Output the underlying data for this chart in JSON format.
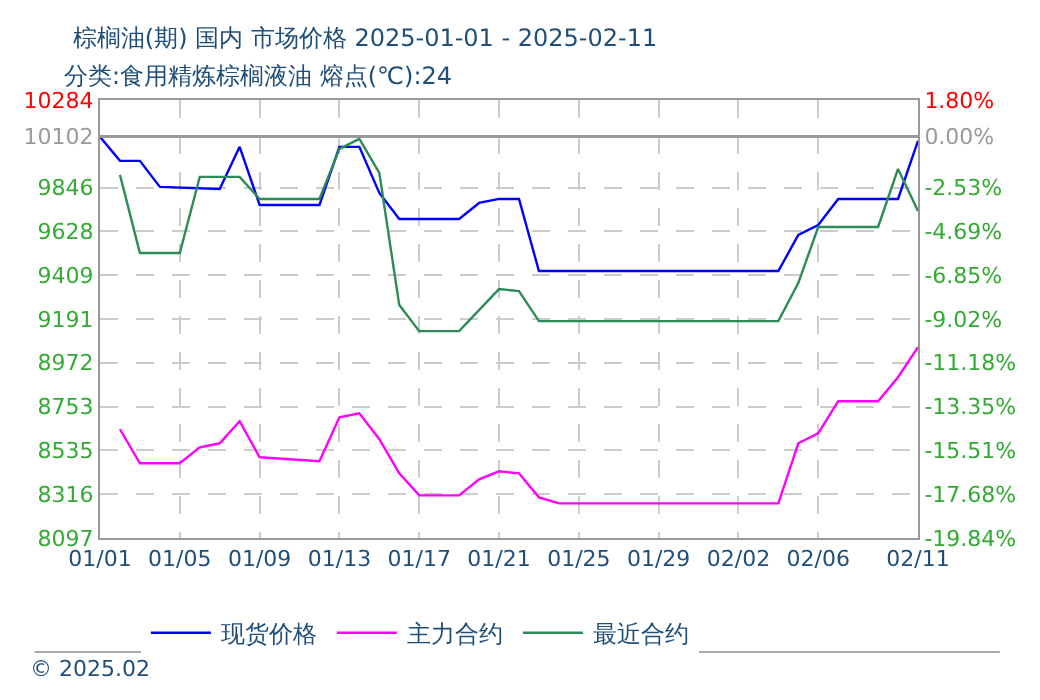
{
  "chart_data": {
    "type": "line",
    "title": "棕榈油(期) 国内 市场价格 2025-01-01 - 2025-02-11",
    "subtitle": "分类:食用精炼棕榈液油 熔点(℃):24",
    "xlim": [
      "2025-01-01",
      "2025-02-11"
    ],
    "xticks": [
      {
        "value": "2025-01-01",
        "label": "01/01"
      },
      {
        "value": "2025-01-05",
        "label": "01/05"
      },
      {
        "value": "2025-01-09",
        "label": "01/09"
      },
      {
        "value": "2025-01-13",
        "label": "01/13"
      },
      {
        "value": "2025-01-17",
        "label": "01/17"
      },
      {
        "value": "2025-01-21",
        "label": "01/21"
      },
      {
        "value": "2025-01-25",
        "label": "01/25"
      },
      {
        "value": "2025-01-29",
        "label": "01/29"
      },
      {
        "value": "2025-02-02",
        "label": "02/02"
      },
      {
        "value": "2025-02-06",
        "label": "02/06"
      },
      {
        "value": "2025-02-11",
        "label": "02/11"
      }
    ],
    "ylim": [
      8097,
      10284
    ],
    "yticks": [
      8097,
      8316,
      8535,
      8753,
      8972,
      9191,
      9409,
      9628,
      9846,
      10102,
      10284
    ],
    "y2lim": [
      -19.84,
      1.8
    ],
    "y2ticks": [
      {
        "value": -19.84,
        "label": "-19.84%"
      },
      {
        "value": -17.68,
        "label": "-17.68%"
      },
      {
        "value": -15.51,
        "label": "-15.51%"
      },
      {
        "value": -13.35,
        "label": "-13.35%"
      },
      {
        "value": -11.18,
        "label": "-11.18%"
      },
      {
        "value": -9.02,
        "label": "-9.02%"
      },
      {
        "value": -6.85,
        "label": "-6.85%"
      },
      {
        "value": -4.69,
        "label": "-4.69%"
      },
      {
        "value": -2.53,
        "label": "-2.53%"
      },
      {
        "value": 0.0,
        "label": "0.00%"
      },
      {
        "value": 1.8,
        "label": "1.80%"
      }
    ],
    "grid": true,
    "legend": "bottom",
    "ref_lines": [
      {
        "axis": "y",
        "value": 10102,
        "color": "#999999"
      }
    ],
    "annotations": [
      "© 2025.02"
    ],
    "series": [
      {
        "name": "现货价格",
        "color": "#0000ff",
        "x": [
          "2025-01-01",
          "2025-01-02",
          "2025-01-03",
          "2025-01-04",
          "2025-01-07",
          "2025-01-08",
          "2025-01-09",
          "2025-01-12",
          "2025-01-13",
          "2025-01-14",
          "2025-01-15",
          "2025-01-16",
          "2025-01-19",
          "2025-01-20",
          "2025-01-21",
          "2025-01-22",
          "2025-01-23",
          "2025-02-04",
          "2025-02-05",
          "2025-02-06",
          "2025-02-07",
          "2025-02-10",
          "2025-02-11"
        ],
        "values": [
          10100,
          9980,
          9980,
          9850,
          9840,
          10050,
          9760,
          9760,
          10050,
          10050,
          9820,
          9690,
          9690,
          9770,
          9790,
          9790,
          9430,
          9430,
          9610,
          9660,
          9790,
          9790,
          10080
        ]
      },
      {
        "name": "主力合约",
        "color": "#ff00ff",
        "x": [
          "2025-01-02",
          "2025-01-03",
          "2025-01-05",
          "2025-01-06",
          "2025-01-07",
          "2025-01-08",
          "2025-01-09",
          "2025-01-12",
          "2025-01-13",
          "2025-01-14",
          "2025-01-15",
          "2025-01-16",
          "2025-01-17",
          "2025-01-19",
          "2025-01-20",
          "2025-01-21",
          "2025-01-22",
          "2025-01-23",
          "2025-01-24",
          "2025-02-04",
          "2025-02-05",
          "2025-02-06",
          "2025-02-07",
          "2025-02-09",
          "2025-02-10",
          "2025-02-11"
        ],
        "values": [
          8640,
          8470,
          8470,
          8550,
          8570,
          8680,
          8500,
          8480,
          8700,
          8720,
          8590,
          8420,
          8310,
          8310,
          8390,
          8430,
          8420,
          8300,
          8270,
          8270,
          8570,
          8620,
          8780,
          8780,
          8900,
          9050
        ]
      },
      {
        "name": "最近合约",
        "color": "#2e8b57",
        "x": [
          "2025-01-02",
          "2025-01-03",
          "2025-01-05",
          "2025-01-06",
          "2025-01-08",
          "2025-01-09",
          "2025-01-12",
          "2025-01-13",
          "2025-01-14",
          "2025-01-15",
          "2025-01-16",
          "2025-01-17",
          "2025-01-19",
          "2025-01-21",
          "2025-01-22",
          "2025-01-23",
          "2025-02-04",
          "2025-02-05",
          "2025-02-06",
          "2025-02-09",
          "2025-02-10",
          "2025-02-11"
        ],
        "values": [
          9910,
          9520,
          9520,
          9900,
          9900,
          9790,
          9790,
          10040,
          10090,
          9920,
          9260,
          9130,
          9130,
          9340,
          9330,
          9180,
          9180,
          9370,
          9650,
          9650,
          9940,
          9730
        ]
      }
    ]
  }
}
